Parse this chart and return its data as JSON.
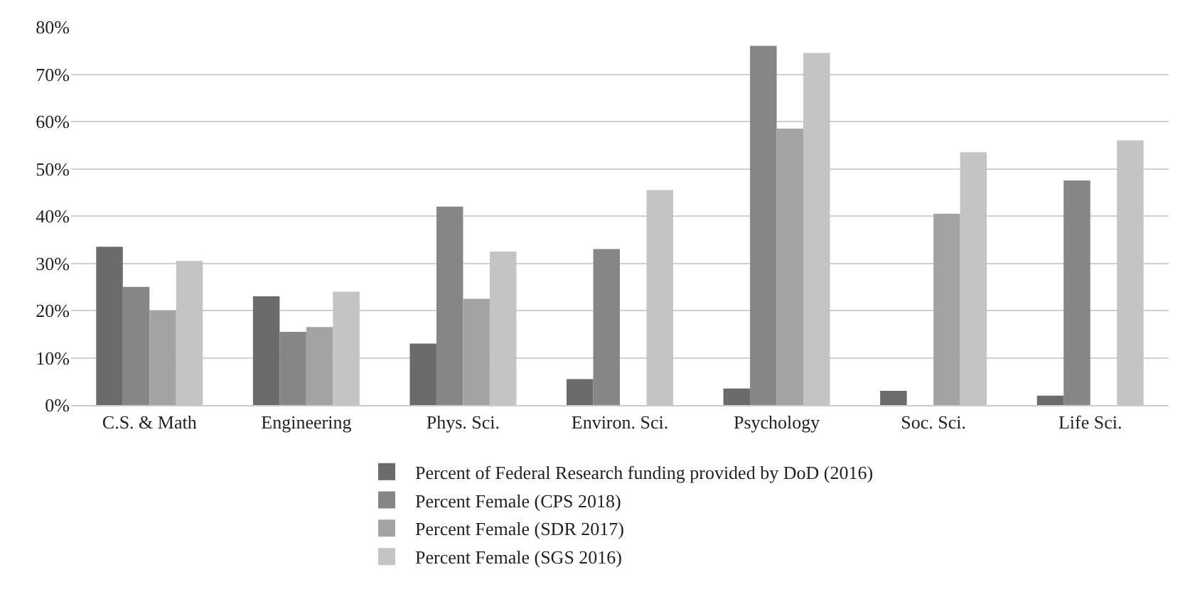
{
  "chart_data": {
    "type": "bar",
    "categories": [
      "C.S. & Math",
      "Engineering",
      "Phys. Sci.",
      "Environ. Sci.",
      "Psychology",
      "Soc. Sci.",
      "Life Sci."
    ],
    "series": [
      {
        "name": "Percent of Federal Research funding provided by DoD (2016)",
        "color": "#6b6b6b",
        "values": [
          33.5,
          23,
          13,
          5.5,
          3.5,
          3,
          2
        ]
      },
      {
        "name": "Percent Female (CPS 2018)",
        "color": "#868686",
        "values": [
          25,
          15.5,
          42,
          33,
          76,
          null,
          47.5
        ]
      },
      {
        "name": "Percent Female (SDR 2017)",
        "color": "#a3a3a3",
        "values": [
          20,
          16.5,
          22.5,
          null,
          58.5,
          40.5,
          null
        ]
      },
      {
        "name": "Percent Female (SGS 2016)",
        "color": "#c4c4c4",
        "values": [
          30.5,
          24,
          32.5,
          45.5,
          74.5,
          53.5,
          56
        ]
      }
    ],
    "ylim": [
      0,
      80
    ],
    "yticks": [
      {
        "value": 0,
        "label": "0%"
      },
      {
        "value": 10,
        "label": "10%"
      },
      {
        "value": 20,
        "label": "20%"
      },
      {
        "value": 30,
        "label": "30%"
      },
      {
        "value": 40,
        "label": "40%"
      },
      {
        "value": 50,
        "label": "50%"
      },
      {
        "value": 60,
        "label": "60%"
      },
      {
        "value": 70,
        "label": "70%"
      },
      {
        "value": 80,
        "label": "80%"
      }
    ],
    "grid": "y",
    "legend": "bottom"
  }
}
